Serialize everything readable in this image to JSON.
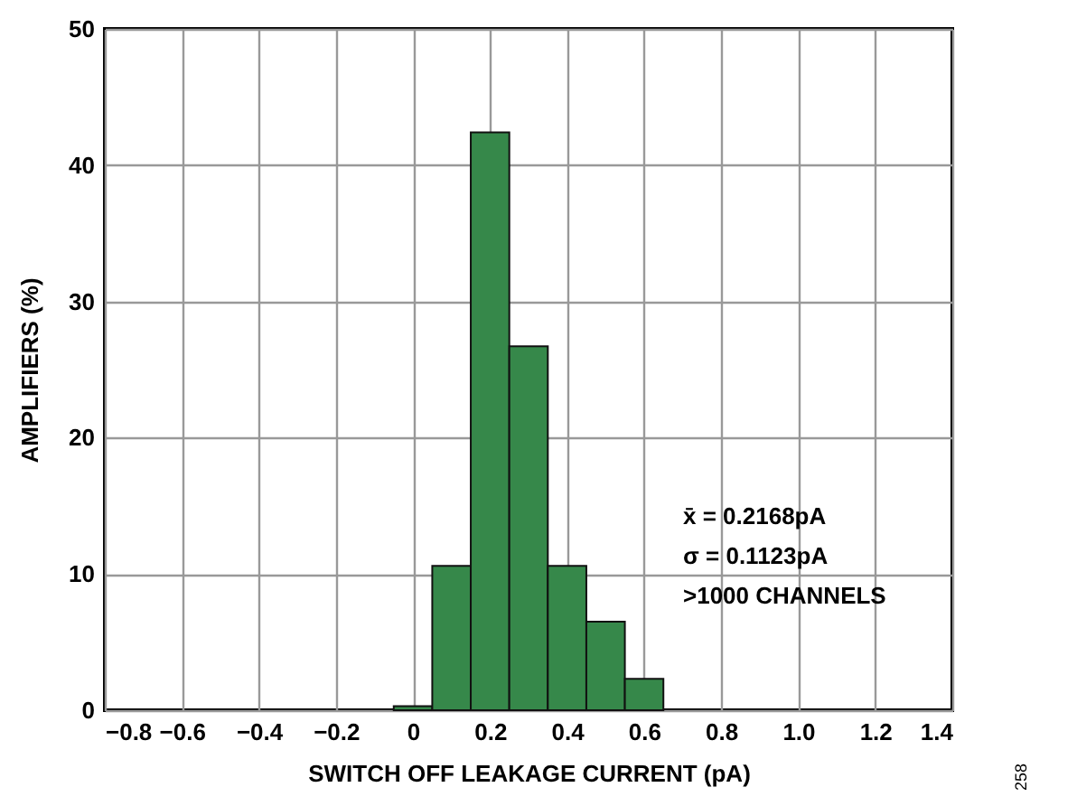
{
  "chart_data": {
    "type": "histogram",
    "xlabel": "SWITCH OFF LEAKAGE CURRENT (pA)",
    "ylabel": "AMPLIFIERS (%)",
    "bins": [
      -0.05,
      0.05,
      0.15,
      0.25,
      0.35,
      0.45,
      0.55,
      0.65
    ],
    "values": [
      0.3,
      10.6,
      42.4,
      26.7,
      10.6,
      6.5,
      2.3
    ],
    "color": "#36884a",
    "xlim": [
      -0.8,
      1.4
    ],
    "xticks": [
      {
        "value": -0.8,
        "label": "−0.8"
      },
      {
        "value": -0.6,
        "label": "−0.6"
      },
      {
        "value": -0.4,
        "label": "−0.4"
      },
      {
        "value": -0.2,
        "label": "−0.2"
      },
      0,
      0.2,
      0.4,
      0.6,
      0.8,
      {
        "value": 1,
        "label": "1.0"
      },
      1.2,
      1.4
    ],
    "ylim": [
      0,
      50
    ],
    "yticks": [
      0,
      10,
      20,
      30,
      40,
      50
    ],
    "grid": true,
    "annotations": [
      "x̄ = 0.2168pA",
      "σ = 0.1123pA",
      ">1000 CHANNELS",
      "258"
    ]
  }
}
